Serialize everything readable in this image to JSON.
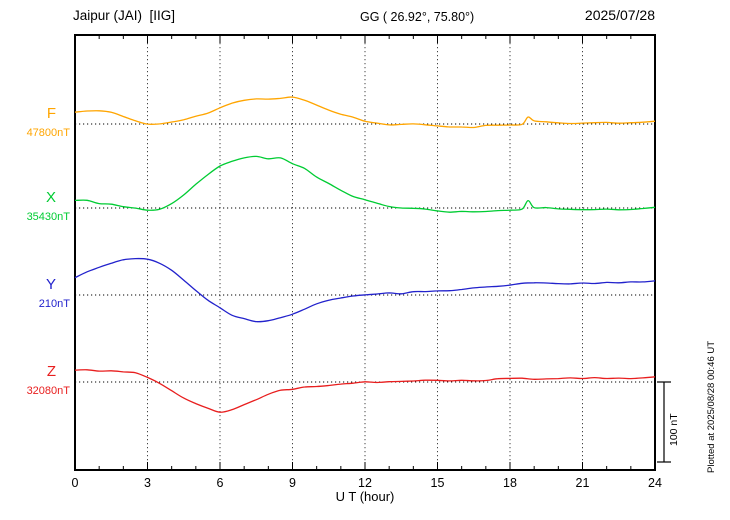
{
  "header": {
    "station": "Jaipur (JAI)  [IIG]",
    "coords": "GG ( 26.92°, 75.80°)",
    "date": "2025/07/28"
  },
  "footer": {
    "xlabel": "U T (hour)"
  },
  "side": {
    "scale_label": "100 nT",
    "plotted_at": "Plotted at 2025/08/28 00:46 UT"
  },
  "chart_data": {
    "type": "line",
    "title": "Jaipur (JAI) [IIG]",
    "subtitle": "GG ( 26.92°, 75.80°)",
    "date": "2025/07/28",
    "xlabel": "U T (hour)",
    "x_range": [
      0,
      24
    ],
    "x_ticks": [
      0,
      3,
      6,
      9,
      12,
      15,
      18,
      21,
      24
    ],
    "x_minor_step": 1,
    "grid": "dotted vertical lines every 3 h; dotted horizontal baseline per trace",
    "legend_position": "left margin (trace letter + baseline value)",
    "scale_bar_nT": 100,
    "series": [
      {
        "name": "F",
        "baseline_label": "47800nT",
        "baseline_nT": 47800,
        "color": "#ffa500",
        "x": [
          0,
          0.5,
          1,
          1.5,
          2,
          2.5,
          3,
          3.5,
          4,
          4.5,
          5,
          5.5,
          6,
          6.5,
          7,
          7.5,
          8,
          8.5,
          9,
          9.5,
          10,
          10.5,
          11,
          11.5,
          12,
          12.5,
          13,
          13.5,
          14,
          14.5,
          15,
          15.5,
          16,
          16.5,
          17,
          17.5,
          18,
          18.5,
          18.75,
          19,
          19.5,
          20,
          20.5,
          21,
          21.5,
          22,
          22.5,
          23,
          23.5,
          24
        ],
        "values_nT": [
          14,
          16,
          17,
          15,
          10,
          4,
          0,
          0,
          2,
          5,
          9,
          14,
          20,
          26,
          30,
          32,
          31,
          32,
          34,
          30,
          24,
          17,
          12,
          8,
          4,
          1,
          -1,
          -1,
          0,
          -1,
          -2,
          -4,
          -4,
          -4,
          -2,
          -2,
          -2,
          -1,
          9,
          4,
          2,
          2,
          1,
          1,
          2,
          2,
          1,
          2,
          2,
          4
        ]
      },
      {
        "name": "X",
        "baseline_label": "35430nT",
        "baseline_nT": 35430,
        "color": "#00cc33",
        "x": [
          0,
          0.5,
          1,
          1.5,
          2,
          2.5,
          3,
          3.5,
          4,
          4.5,
          5,
          5.5,
          6,
          6.5,
          7,
          7.5,
          8,
          8.5,
          9,
          9.5,
          10,
          10.5,
          11,
          11.5,
          12,
          12.5,
          13,
          13.5,
          14,
          14.5,
          15,
          15.5,
          16,
          16.5,
          17,
          17.5,
          18,
          18.5,
          18.75,
          19,
          19.5,
          20,
          20.5,
          21,
          21.5,
          22,
          22.5,
          23,
          23.5,
          24
        ],
        "values_nT": [
          10,
          9,
          6,
          5,
          2,
          0,
          -2,
          -1,
          6,
          17,
          30,
          42,
          52,
          59,
          62,
          65,
          61,
          62,
          56,
          49,
          39,
          30,
          22,
          15,
          10,
          6,
          2,
          0,
          -1,
          -2,
          -4,
          -5,
          -5,
          -5,
          -4,
          -4,
          -2,
          -2,
          9,
          1,
          0,
          -1,
          -2,
          -2,
          -2,
          -1,
          -2,
          -2,
          -1,
          1
        ]
      },
      {
        "name": "Y",
        "baseline_label": "210nT",
        "baseline_nT": 210,
        "color": "#2222cc",
        "x": [
          0,
          0.5,
          1,
          1.5,
          2,
          2.5,
          3,
          3.5,
          4,
          4.5,
          5,
          5.5,
          6,
          6.5,
          7,
          7.5,
          8,
          8.5,
          9,
          9.5,
          10,
          10.5,
          11,
          11.5,
          12,
          12.5,
          13,
          13.5,
          14,
          14.5,
          15,
          15.5,
          16,
          16.5,
          17,
          17.5,
          18,
          18.5,
          19,
          19.5,
          20,
          20.5,
          21,
          21.5,
          22,
          22.5,
          23,
          23.5,
          24
        ],
        "values_nT": [
          21,
          29,
          35,
          40,
          44,
          46,
          45,
          40,
          31,
          19,
          5,
          -6,
          -16,
          -25,
          -30,
          -34,
          -32,
          -29,
          -24,
          -17,
          -11,
          -6,
          -4,
          -1,
          0,
          1,
          2,
          2,
          4,
          4,
          5,
          6,
          7,
          9,
          10,
          11,
          12,
          14,
          15,
          15,
          14,
          14,
          15,
          15,
          15,
          16,
          16,
          16,
          17
        ]
      },
      {
        "name": "Z",
        "baseline_label": "32080nT",
        "baseline_nT": 32080,
        "color": "#e81e1e",
        "x": [
          0,
          0.5,
          1,
          1.5,
          2,
          2.5,
          3,
          3.5,
          4,
          4.5,
          5,
          5.5,
          6,
          6.5,
          7,
          7.5,
          8,
          8.5,
          9,
          9.5,
          10,
          10.5,
          11,
          11.5,
          12,
          12.5,
          13,
          13.5,
          14,
          14.5,
          15,
          15.5,
          16,
          16.5,
          17,
          17.5,
          18,
          18.5,
          19,
          19.5,
          20,
          20.5,
          21,
          21.5,
          22,
          22.5,
          23,
          23.5,
          24
        ],
        "values_nT": [
          15,
          15,
          14,
          14,
          12,
          11,
          6,
          -2,
          -11,
          -20,
          -27,
          -33,
          -37,
          -34,
          -29,
          -22,
          -15,
          -11,
          -9,
          -6,
          -5,
          -4,
          -2,
          -1,
          0,
          0,
          1,
          1,
          1,
          2,
          2,
          2,
          2,
          2,
          2,
          4,
          4,
          4,
          4,
          4,
          4,
          5,
          4,
          5,
          5,
          5,
          5,
          5,
          6
        ]
      }
    ]
  }
}
